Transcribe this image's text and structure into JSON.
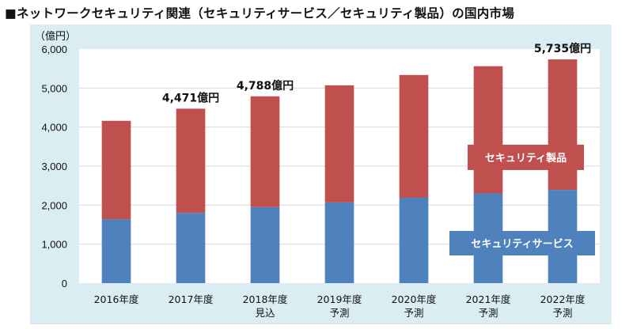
{
  "title": "■ネットワークセキュリティ関連（セキュリティサービス／セキュリティ製品）の国内市場",
  "colors": {
    "service": "#4f81bd",
    "product": "#c0504d",
    "chart_background": "#daedf3",
    "plot_background": "#ffffff",
    "gridline": "#d9d9d9"
  },
  "chart_data": {
    "type": "bar",
    "stacked": true,
    "title": "ネットワークセキュリティ関連（セキュリティサービス／セキュリティ製品）の国内市場",
    "unit_label": "（億円）",
    "xlabel": "",
    "ylabel": "（億円）",
    "ylim": [
      0,
      6000
    ],
    "yticks": [
      0,
      1000,
      2000,
      3000,
      4000,
      5000,
      6000
    ],
    "ytick_labels": [
      "0",
      "1,000",
      "2,000",
      "3,000",
      "4,000",
      "5,000",
      "6,000"
    ],
    "grid": true,
    "categories": [
      [
        "2016年度"
      ],
      [
        "2017年度"
      ],
      [
        "2018年度",
        "見込"
      ],
      [
        "2019年度",
        "予測"
      ],
      [
        "2020年度",
        "予測"
      ],
      [
        "2021年度",
        "予測"
      ],
      [
        "2022年度",
        "予測"
      ]
    ],
    "series": [
      {
        "name": "セキュリティサービス",
        "color": "#4f81bd",
        "values": [
          1640,
          1800,
          1950,
          2070,
          2190,
          2300,
          2390
        ]
      },
      {
        "name": "セキュリティ製品",
        "color": "#c0504d",
        "values": [
          2520,
          2671,
          2838,
          3000,
          3145,
          3260,
          3345
        ]
      }
    ],
    "totals": [
      4160,
      4471,
      4788,
      5070,
      5335,
      5560,
      5735
    ],
    "data_labels": [
      {
        "category_index": 1,
        "text": "4,471億円"
      },
      {
        "category_index": 2,
        "text": "4,788億円"
      },
      {
        "category_index": 6,
        "text": "5,735億円"
      }
    ],
    "legend": {
      "placement": "inside-right",
      "entries": [
        {
          "name": "セキュリティ製品",
          "color": "#c0504d"
        },
        {
          "name": "セキュリティサービス",
          "color": "#4f81bd"
        }
      ]
    }
  }
}
